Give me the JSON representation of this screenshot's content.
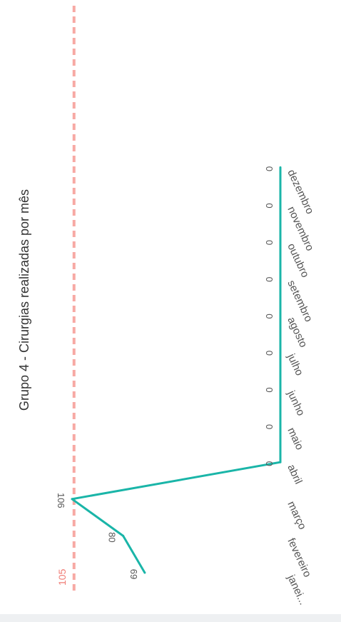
{
  "chart_data": {
    "type": "line",
    "title": "Grupo 4 - Cirurgias realizadas por mês",
    "categories": [
      "janei...",
      "fevereiro",
      "março",
      "abril",
      "maio",
      "junho",
      "julho",
      "agosto",
      "setembro",
      "outubro",
      "novembro",
      "dezembro"
    ],
    "values": [
      69,
      80,
      106,
      0,
      0,
      0,
      0,
      0,
      0,
      0,
      0,
      0
    ],
    "data_labels": [
      "69",
      "80",
      "106",
      "0",
      "0",
      "0",
      "0",
      "0",
      "0",
      "0",
      "0",
      "0"
    ],
    "reference_line": {
      "value": 105,
      "label": "105",
      "style": "dashed"
    },
    "ylim": [
      0,
      106
    ],
    "orientation": "rotated-90-clockwise",
    "grid": false,
    "colors": {
      "line": "#1ab5a8",
      "reference": "#f7a9a4",
      "reference_label": "#f07b74"
    }
  }
}
